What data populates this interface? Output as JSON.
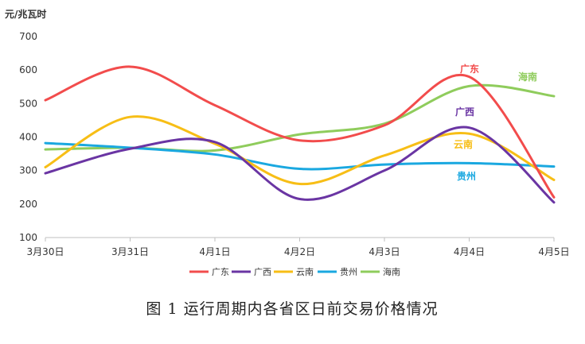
{
  "chart_data": {
    "type": "line",
    "ylabel": "元/兆瓦时",
    "ylim": [
      100,
      700
    ],
    "yticks": [
      100,
      200,
      300,
      400,
      500,
      600,
      700
    ],
    "grid": false,
    "smooth": true,
    "legend_position": "bottom",
    "categories": [
      "3月30日",
      "3月31日",
      "4月1日",
      "4月2日",
      "4月3日",
      "4月4日",
      "4月5日"
    ],
    "series": [
      {
        "name": "广东",
        "color": "#f24c4c",
        "label": "广东",
        "values": [
          510,
          610,
          495,
          390,
          435,
          580,
          220
        ]
      },
      {
        "name": "广西",
        "color": "#6a35a3",
        "label": "广西",
        "values": [
          292,
          365,
          385,
          215,
          300,
          428,
          205
        ]
      },
      {
        "name": "云南",
        "color": "#f7be16",
        "label": "云南",
        "values": [
          310,
          460,
          380,
          260,
          345,
          410,
          272
        ]
      },
      {
        "name": "贵州",
        "color": "#1aa8e0",
        "label": "贵州",
        "values": [
          382,
          368,
          348,
          305,
          318,
          322,
          312
        ]
      },
      {
        "name": "海南",
        "color": "#8fcc5c",
        "label": "海南",
        "values": [
          363,
          368,
          360,
          408,
          440,
          552,
          522
        ]
      }
    ]
  },
  "caption": "图 1  运行周期内各省区日前交易价格情况"
}
